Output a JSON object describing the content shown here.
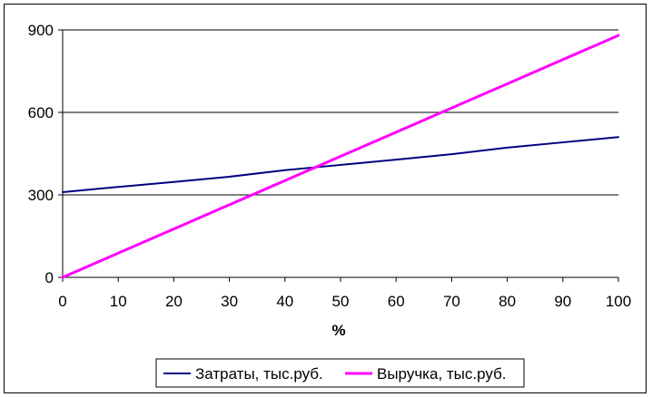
{
  "chart_data": {
    "type": "line",
    "title": "",
    "xlabel": "%",
    "ylabel": "",
    "xlim": [
      0,
      100
    ],
    "ylim": [
      0,
      900
    ],
    "x_ticks": [
      0,
      10,
      20,
      30,
      40,
      50,
      60,
      70,
      80,
      90,
      100
    ],
    "y_ticks": [
      0,
      300,
      600,
      900
    ],
    "grid": "horizontal",
    "legend_position": "bottom",
    "x": [
      0,
      10,
      20,
      30,
      40,
      50,
      60,
      70,
      80,
      90,
      100
    ],
    "series": [
      {
        "name": "Затраты, тыс.руб.",
        "color": "#000080",
        "values": [
          310,
          329,
          347,
          366,
          390,
          409,
          428,
          448,
          472,
          491,
          510
        ]
      },
      {
        "name": "Выручка, тыс.руб.",
        "color": "#FF00FF",
        "values": [
          0,
          88,
          176,
          264,
          352,
          440,
          528,
          616,
          704,
          792,
          880
        ]
      }
    ]
  }
}
